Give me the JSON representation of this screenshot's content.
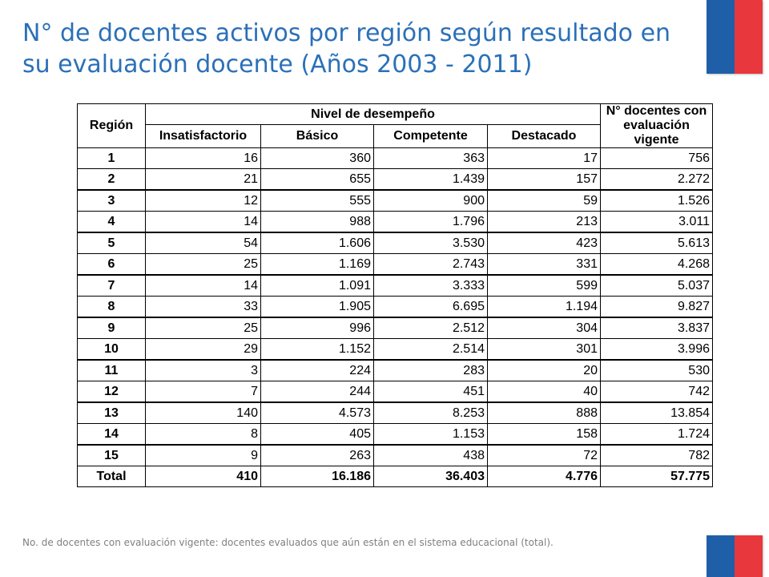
{
  "title": "N° de docentes activos por región según resultado en su evaluación docente (Años 2003 - 2011)",
  "table": {
    "region_header": "Región",
    "group_header": "Nivel de desempeño",
    "total_col_header": "N° docentes con evaluación vigente",
    "level_headers": [
      "Insatisfactorio",
      "Básico",
      "Competente",
      "Destacado"
    ],
    "rows": [
      {
        "region": "1",
        "insatisfactorio": "16",
        "basico": "360",
        "competente": "363",
        "destacado": "17",
        "total": "756"
      },
      {
        "region": "2",
        "insatisfactorio": "21",
        "basico": "655",
        "competente": "1.439",
        "destacado": "157",
        "total": "2.272"
      },
      {
        "region": "3",
        "insatisfactorio": "12",
        "basico": "555",
        "competente": "900",
        "destacado": "59",
        "total": "1.526"
      },
      {
        "region": "4",
        "insatisfactorio": "14",
        "basico": "988",
        "competente": "1.796",
        "destacado": "213",
        "total": "3.011"
      },
      {
        "region": "5",
        "insatisfactorio": "54",
        "basico": "1.606",
        "competente": "3.530",
        "destacado": "423",
        "total": "5.613"
      },
      {
        "region": "6",
        "insatisfactorio": "25",
        "basico": "1.169",
        "competente": "2.743",
        "destacado": "331",
        "total": "4.268"
      },
      {
        "region": "7",
        "insatisfactorio": "14",
        "basico": "1.091",
        "competente": "3.333",
        "destacado": "599",
        "total": "5.037"
      },
      {
        "region": "8",
        "insatisfactorio": "33",
        "basico": "1.905",
        "competente": "6.695",
        "destacado": "1.194",
        "total": "9.827"
      },
      {
        "region": "9",
        "insatisfactorio": "25",
        "basico": "996",
        "competente": "2.512",
        "destacado": "304",
        "total": "3.837"
      },
      {
        "region": "10",
        "insatisfactorio": "29",
        "basico": "1.152",
        "competente": "2.514",
        "destacado": "301",
        "total": "3.996"
      },
      {
        "region": "11",
        "insatisfactorio": "3",
        "basico": "224",
        "competente": "283",
        "destacado": "20",
        "total": "530"
      },
      {
        "region": "12",
        "insatisfactorio": "7",
        "basico": "244",
        "competente": "451",
        "destacado": "40",
        "total": "742"
      },
      {
        "region": "13",
        "insatisfactorio": "140",
        "basico": "4.573",
        "competente": "8.253",
        "destacado": "888",
        "total": "13.854"
      },
      {
        "region": "14",
        "insatisfactorio": "8",
        "basico": "405",
        "competente": "1.153",
        "destacado": "158",
        "total": "1.724"
      },
      {
        "region": "15",
        "insatisfactorio": "9",
        "basico": "263",
        "competente": "438",
        "destacado": "72",
        "total": "782"
      }
    ],
    "total_row": {
      "region": "Total",
      "insatisfactorio": "410",
      "basico": "16.186",
      "competente": "36.403",
      "destacado": "4.776",
      "total": "57.775"
    }
  },
  "footnote": "No. de docentes con evaluación vigente: docentes evaluados que aún están en el sistema educacional (total).",
  "colors": {
    "title": "#2b70b8",
    "flag_blue": "#1f5fa8",
    "flag_red": "#e8383d",
    "footnote": "#7f7f7f"
  }
}
